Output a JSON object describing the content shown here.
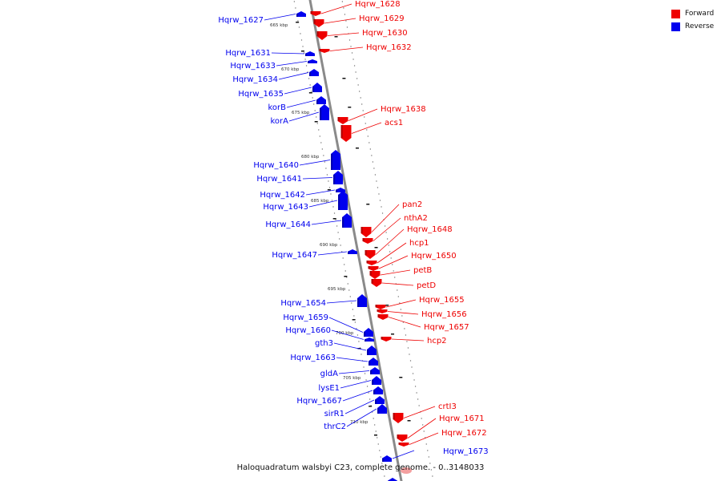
{
  "title": "Haloquadratum walsbyi C23, complete genome. - 0..3148033",
  "legend": [
    {
      "label": "Forward",
      "color": "#ee0000"
    },
    {
      "label": "Reverse",
      "color": "#0000ee"
    }
  ],
  "colors": {
    "forward": "#ee0000",
    "reverse": "#0000ee",
    "backbone": "#8a8a8a"
  },
  "scale_labels": [
    "665 kbp",
    "670 kbp",
    "675 kbp",
    "680 kbp",
    "685 kbp",
    "690 kbp",
    "695 kbp",
    "700 kbp",
    "705 kbp",
    "710 kbp"
  ],
  "reverse_genes": [
    "Hqrw_1627",
    "Hqrw_1631",
    "Hqrw_1633",
    "Hqrw_1634",
    "Hqrw_1635",
    "korB",
    "korA",
    "Hqrw_1640",
    "Hqrw_1641",
    "Hqrw_1642",
    "Hqrw_1643",
    "Hqrw_1644",
    "Hqrw_1647",
    "Hqrw_1654",
    "Hqrw_1659",
    "Hqrw_1660",
    "gth3",
    "Hqrw_1663",
    "gldA",
    "lysE1",
    "Hqrw_1667",
    "sirR1",
    "thrC2",
    "Hqrw_1673"
  ],
  "forward_genes": [
    "Hqrw_1628",
    "Hqrw_1629",
    "Hqrw_1630",
    "Hqrw_1632",
    "Hqrw_1638",
    "acs1",
    "pan2",
    "nthA2",
    "Hqrw_1648",
    "hcp1",
    "Hqrw_1650",
    "petB",
    "petD",
    "Hqrw_1655",
    "Hqrw_1656",
    "Hqrw_1657",
    "hcp2",
    "crtI3",
    "Hqrw_1671",
    "Hqrw_1672"
  ]
}
